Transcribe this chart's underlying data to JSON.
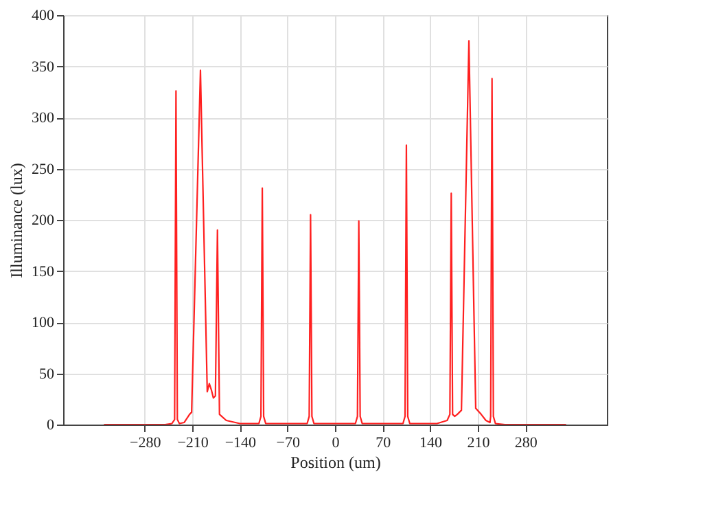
{
  "chart_data": {
    "type": "line",
    "xlabel": "Position (um)",
    "ylabel": "Illuminance (lux)",
    "xlim": [
      -400,
      400
    ],
    "xticks": [
      -280,
      -210,
      -140,
      -70,
      0,
      70,
      140,
      210,
      280
    ],
    "ylim": [
      0,
      400
    ],
    "yticks": [
      0,
      50,
      100,
      150,
      200,
      250,
      300,
      350,
      400
    ],
    "grid": true,
    "marker": "none",
    "line_style": "solid",
    "series": [
      {
        "color": "#ff2020",
        "x": [
          -340,
          -250,
          -240,
          -236,
          -234,
          -232,
          -229,
          -222,
          -214,
          -211,
          -198,
          -188,
          -185,
          -182,
          -179,
          -176,
          -173,
          -170,
          -160,
          -140,
          -112,
          -109,
          -107,
          -105,
          -102,
          -41,
          -38,
          -36,
          -34,
          -31,
          30,
          33,
          35,
          37,
          40,
          100,
          103,
          105,
          107,
          110,
          150,
          165,
          169,
          171,
          173,
          176,
          180,
          186,
          197,
          207,
          215,
          222,
          228,
          229,
          231,
          233,
          236,
          250,
          340
        ],
        "values": [
          0,
          0,
          1,
          5,
          326,
          5,
          1,
          2,
          10,
          12,
          346,
          32,
          40,
          34,
          26,
          28,
          190,
          10,
          4,
          1,
          1,
          8,
          231,
          8,
          1,
          1,
          8,
          205,
          8,
          1,
          1,
          8,
          199,
          8,
          1,
          1,
          8,
          273,
          8,
          1,
          1,
          4,
          10,
          226,
          10,
          8,
          10,
          14,
          375,
          16,
          10,
          4,
          2,
          8,
          338,
          8,
          1,
          0,
          0
        ]
      }
    ]
  }
}
